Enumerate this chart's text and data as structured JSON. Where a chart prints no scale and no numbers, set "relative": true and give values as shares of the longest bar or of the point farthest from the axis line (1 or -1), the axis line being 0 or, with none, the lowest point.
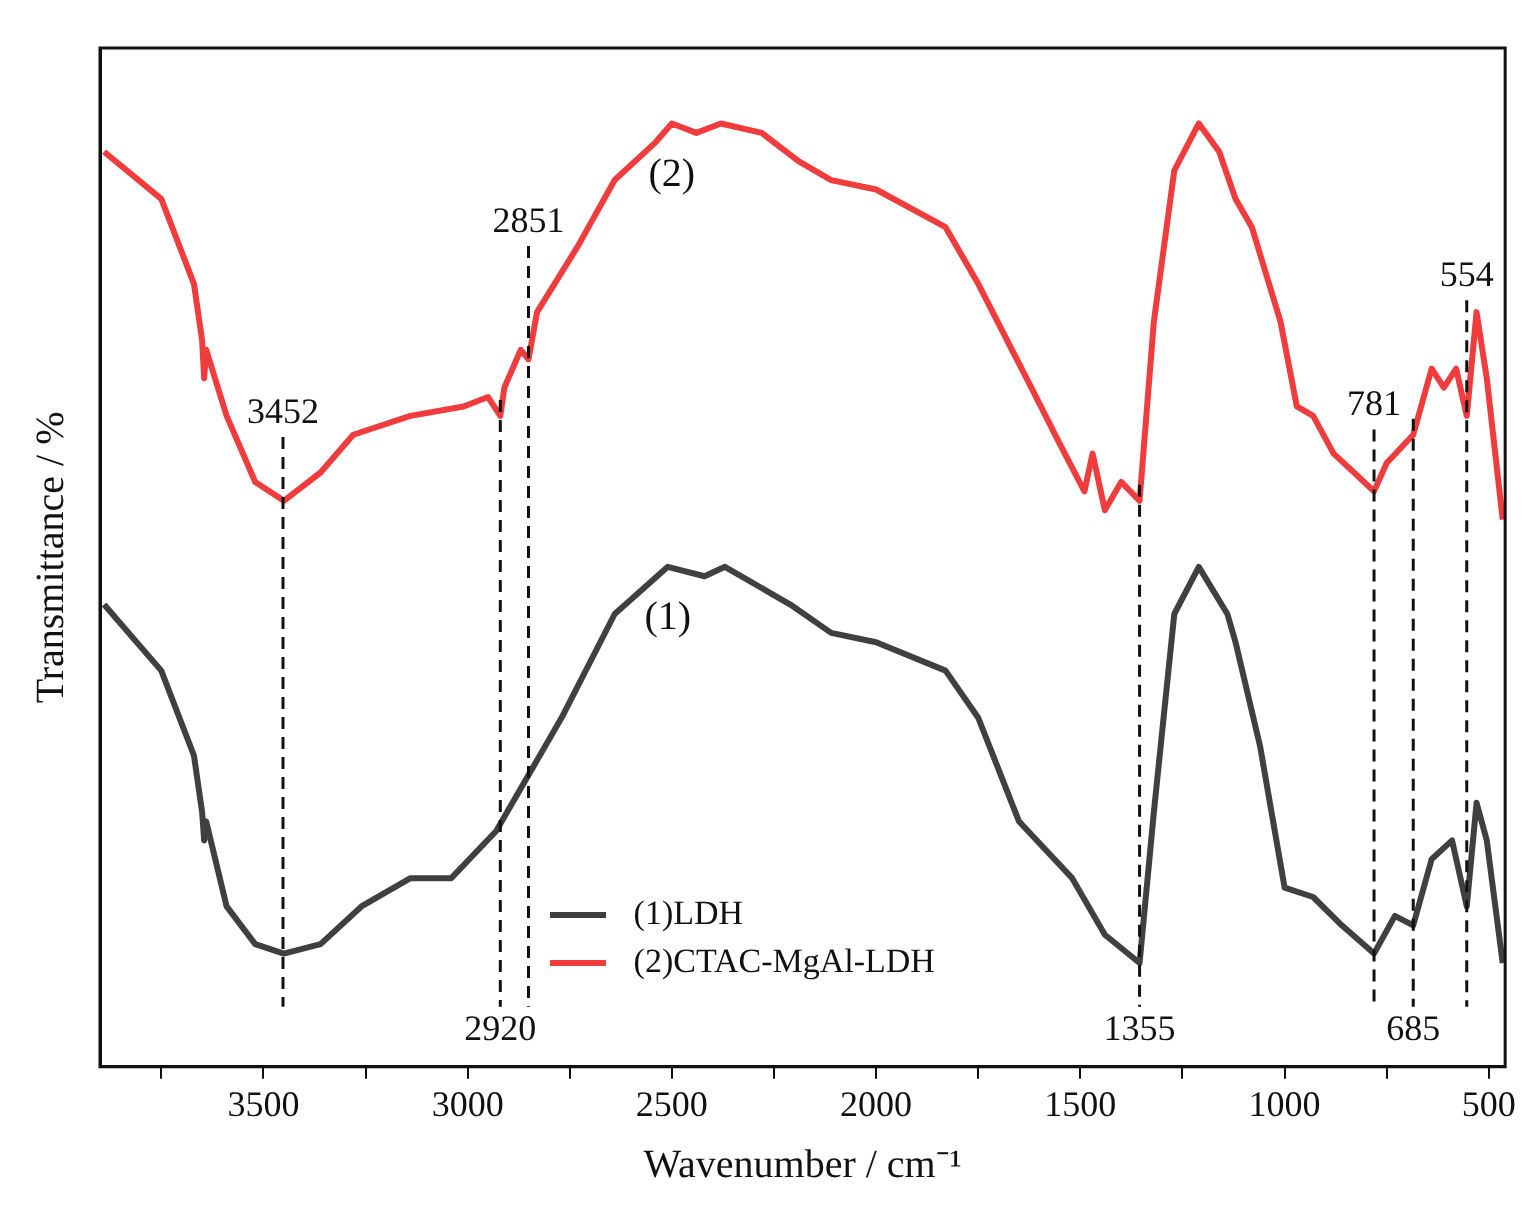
{
  "chart_data": {
    "type": "line",
    "relative": true,
    "xlabel": "Wavenumber / cm⁻¹",
    "ylabel": "Transmittance / %",
    "xlim": [
      3900,
      460
    ],
    "xticks": [
      {
        "value": 3750,
        "label": null
      },
      3500,
      {
        "value": 3250,
        "label": null
      },
      3000,
      {
        "value": 2750,
        "label": null
      },
      2500,
      {
        "value": 2250,
        "label": null
      },
      2000,
      {
        "value": 1750,
        "label": null
      },
      1500,
      {
        "value": 1250,
        "label": null
      },
      1000,
      {
        "value": 750,
        "label": null
      },
      500
    ],
    "legend": "bottom",
    "grid": false,
    "marker": "none",
    "line_style": "solid",
    "series": [
      {
        "name": "(1)LDH",
        "color": "#404040",
        "x": [
          3890,
          3750,
          3670,
          3650,
          3645,
          3640,
          3590,
          3520,
          3450,
          3360,
          3260,
          3140,
          3040,
          2930,
          2770,
          2640,
          2510,
          2420,
          2370,
          2210,
          2110,
          2000,
          1830,
          1750,
          1650,
          1520,
          1440,
          1355,
          1320,
          1270,
          1210,
          1140,
          1120,
          1060,
          1000,
          930,
          860,
          781,
          730,
          685,
          640,
          590,
          554,
          530,
          505,
          466
        ],
        "values": [
          0.49,
          0.42,
          0.33,
          0.27,
          0.24,
          0.26,
          0.17,
          0.13,
          0.12,
          0.13,
          0.17,
          0.2,
          0.2,
          0.25,
          0.37,
          0.48,
          0.53,
          0.52,
          0.53,
          0.49,
          0.46,
          0.45,
          0.42,
          0.37,
          0.26,
          0.2,
          0.14,
          0.11,
          0.27,
          0.48,
          0.53,
          0.48,
          0.45,
          0.34,
          0.19,
          0.18,
          0.15,
          0.12,
          0.16,
          0.15,
          0.22,
          0.24,
          0.17,
          0.28,
          0.24,
          0.11
        ]
      },
      {
        "name": "(2)CTAC-MgAl-LDH",
        "color": "#f03c3c",
        "x": [
          3890,
          3750,
          3670,
          3650,
          3645,
          3640,
          3590,
          3520,
          3450,
          3360,
          3280,
          3140,
          3010,
          2950,
          2920,
          2910,
          2870,
          2851,
          2830,
          2730,
          2640,
          2540,
          2500,
          2440,
          2380,
          2280,
          2190,
          2110,
          2000,
          1830,
          1750,
          1620,
          1550,
          1490,
          1470,
          1440,
          1400,
          1355,
          1320,
          1270,
          1210,
          1160,
          1120,
          1080,
          1010,
          970,
          930,
          880,
          830,
          781,
          750,
          685,
          640,
          610,
          580,
          554,
          530,
          505,
          466
        ],
        "values": [
          0.97,
          0.92,
          0.83,
          0.77,
          0.73,
          0.76,
          0.69,
          0.62,
          0.6,
          0.63,
          0.67,
          0.69,
          0.7,
          0.71,
          0.69,
          0.72,
          0.76,
          0.75,
          0.8,
          0.87,
          0.94,
          0.98,
          1,
          0.99,
          1,
          0.99,
          0.96,
          0.94,
          0.93,
          0.89,
          0.83,
          0.72,
          0.66,
          0.61,
          0.65,
          0.59,
          0.62,
          0.6,
          0.79,
          0.95,
          1,
          0.97,
          0.92,
          0.89,
          0.79,
          0.7,
          0.69,
          0.65,
          0.63,
          0.61,
          0.64,
          0.67,
          0.74,
          0.72,
          0.74,
          0.69,
          0.8,
          0.73,
          0.58
        ]
      }
    ],
    "ref_lines": [
      {
        "axis": "x",
        "value": 3452,
        "label": "3452",
        "line_style": "dashed"
      },
      {
        "axis": "x",
        "value": 2920,
        "label": "2920",
        "line_style": "dashed"
      },
      {
        "axis": "x",
        "value": 2851,
        "label": "2851",
        "line_style": "dashed"
      },
      {
        "axis": "x",
        "value": 1355,
        "label": "1355",
        "line_style": "dashed"
      },
      {
        "axis": "x",
        "value": 781,
        "label": "781",
        "line_style": "dashed"
      },
      {
        "axis": "x",
        "value": 685,
        "label": "685",
        "line_style": "dashed"
      },
      {
        "axis": "x",
        "value": 554,
        "label": "554",
        "line_style": "dashed"
      }
    ],
    "annotations": [
      "(2)",
      "(1)"
    ]
  }
}
